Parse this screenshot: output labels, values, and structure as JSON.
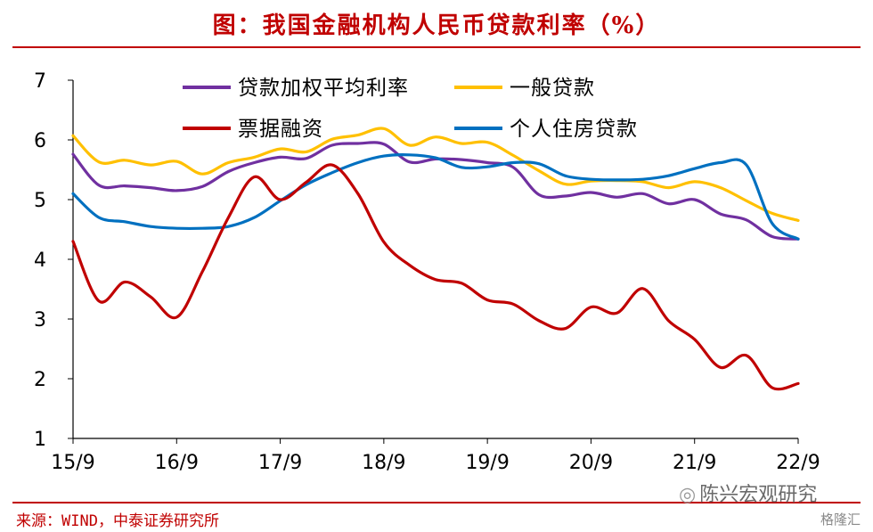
{
  "title": "图：我国金融机构人民币贷款利率（%）",
  "source": "来源：WIND，中泰证券研究所",
  "watermark": "陈兴宏观研究",
  "watermark_icon": "wechat-icon",
  "watermark2": "格隆汇",
  "colors": {
    "accent": "#c00000",
    "weighted": "#7030a0",
    "general": "#ffc000",
    "bill": "#c00000",
    "mortgage": "#0070c0"
  },
  "chart_data": {
    "type": "line",
    "x_ticks": [
      "15/9",
      "16/9",
      "17/9",
      "18/9",
      "19/9",
      "20/9",
      "21/9",
      "22/9"
    ],
    "y_ticks": [
      "1",
      "2",
      "3",
      "4",
      "5",
      "6",
      "7"
    ],
    "ylim": [
      1,
      7
    ],
    "x_unit": "quarter",
    "x": [
      "15/9",
      "15/12",
      "16/3",
      "16/6",
      "16/9",
      "16/12",
      "17/3",
      "17/6",
      "17/9",
      "17/12",
      "18/3",
      "18/6",
      "18/9",
      "18/12",
      "19/3",
      "19/6",
      "19/9",
      "19/12",
      "20/3",
      "20/6",
      "20/9",
      "20/12",
      "21/3",
      "21/6",
      "21/9",
      "21/12",
      "22/3",
      "22/6",
      "22/9"
    ],
    "legend": [
      {
        "name": "贷款加权平均利率",
        "key": "weighted"
      },
      {
        "name": "一般贷款",
        "key": "general"
      },
      {
        "name": "票据融资",
        "key": "bill"
      },
      {
        "name": "个人住房贷款",
        "key": "mortgage"
      }
    ],
    "series": [
      {
        "name": "贷款加权平均利率",
        "key": "weighted",
        "values": [
          5.76,
          5.24,
          5.23,
          5.2,
          5.15,
          5.22,
          5.47,
          5.62,
          5.71,
          5.69,
          5.91,
          5.94,
          5.93,
          5.63,
          5.68,
          5.67,
          5.62,
          5.54,
          5.08,
          5.06,
          5.12,
          5.04,
          5.1,
          4.93,
          5.0,
          4.76,
          4.66,
          4.38,
          4.34
        ]
      },
      {
        "name": "一般贷款",
        "key": "general",
        "values": [
          6.07,
          5.63,
          5.66,
          5.58,
          5.64,
          5.43,
          5.62,
          5.71,
          5.85,
          5.8,
          6.01,
          6.08,
          6.19,
          5.91,
          6.05,
          5.94,
          5.96,
          5.74,
          5.48,
          5.26,
          5.31,
          5.32,
          5.3,
          5.2,
          5.3,
          5.2,
          4.98,
          4.77,
          4.65
        ]
      },
      {
        "name": "票据融资",
        "key": "bill",
        "values": [
          4.3,
          3.3,
          3.62,
          3.37,
          3.03,
          3.8,
          4.7,
          5.38,
          5.0,
          5.29,
          5.58,
          5.1,
          4.29,
          3.9,
          3.66,
          3.6,
          3.32,
          3.25,
          2.97,
          2.84,
          3.2,
          3.1,
          3.51,
          2.97,
          2.66,
          2.19,
          2.39,
          1.85,
          1.92
        ]
      },
      {
        "name": "个人住房贷款",
        "key": "mortgage",
        "values": [
          5.1,
          4.7,
          4.63,
          4.55,
          4.52,
          4.52,
          4.55,
          4.7,
          4.98,
          5.25,
          5.45,
          5.62,
          5.73,
          5.75,
          5.7,
          5.54,
          5.55,
          5.62,
          5.6,
          5.4,
          5.34,
          5.33,
          5.34,
          5.4,
          5.52,
          5.62,
          5.58,
          4.6,
          4.34
        ]
      }
    ]
  }
}
